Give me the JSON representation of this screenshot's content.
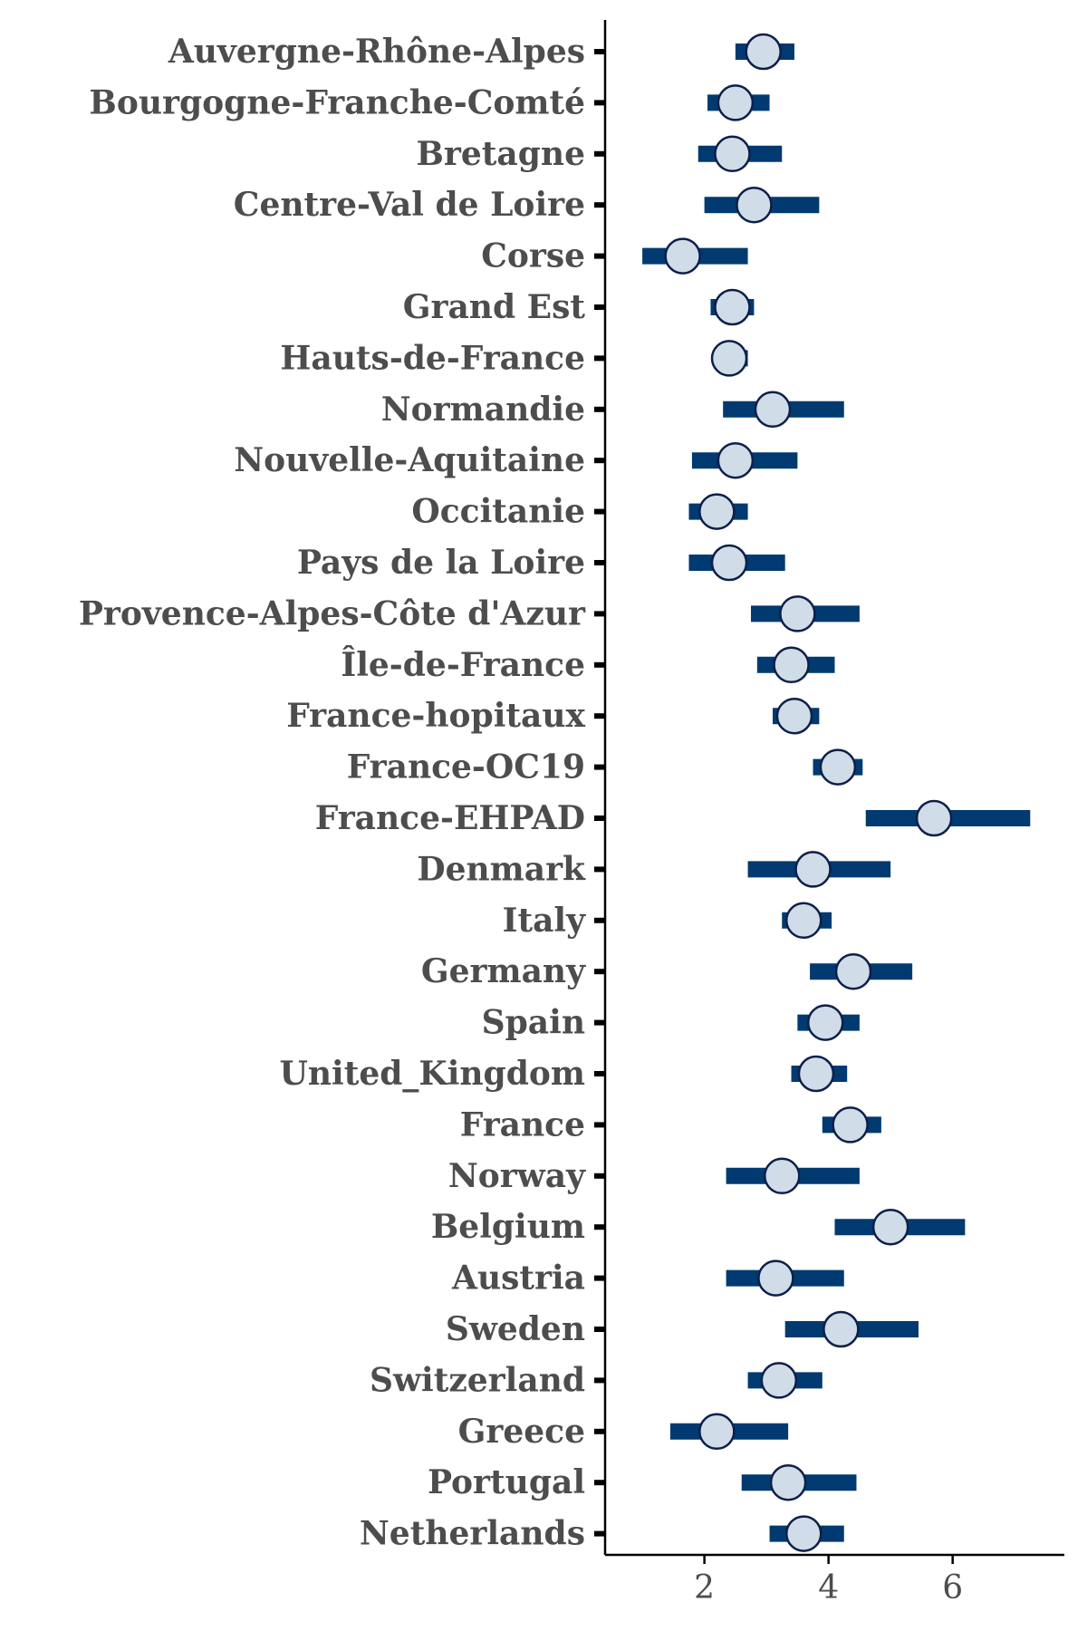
{
  "chart_data": {
    "type": "forest",
    "xlabel": "",
    "ylabel": "",
    "xlim": [
      0.4,
      7.8
    ],
    "xticks": [
      2,
      4,
      6
    ],
    "grid": false,
    "legend": "none",
    "colors": {
      "interval": "#003a70",
      "point_fill": "#d0dde8",
      "point_stroke": "#0d1f4a",
      "axis": "#000000",
      "text": "#4d4d4d"
    },
    "rows": [
      {
        "label": "Auvergne-Rhône-Alpes",
        "estimate": 2.95,
        "low": 2.5,
        "high": 3.45
      },
      {
        "label": "Bourgogne-Franche-Comté",
        "estimate": 2.5,
        "low": 2.05,
        "high": 3.05
      },
      {
        "label": "Bretagne",
        "estimate": 2.45,
        "low": 1.9,
        "high": 3.25
      },
      {
        "label": "Centre-Val de Loire",
        "estimate": 2.8,
        "low": 2.0,
        "high": 3.85
      },
      {
        "label": "Corse",
        "estimate": 1.65,
        "low": 1.0,
        "high": 2.7
      },
      {
        "label": "Grand Est",
        "estimate": 2.45,
        "low": 2.1,
        "high": 2.8
      },
      {
        "label": "Hauts-de-France",
        "estimate": 2.4,
        "low": 2.15,
        "high": 2.7
      },
      {
        "label": "Normandie",
        "estimate": 3.1,
        "low": 2.3,
        "high": 4.25
      },
      {
        "label": "Nouvelle-Aquitaine",
        "estimate": 2.5,
        "low": 1.8,
        "high": 3.5
      },
      {
        "label": "Occitanie",
        "estimate": 2.2,
        "low": 1.75,
        "high": 2.7
      },
      {
        "label": "Pays de la Loire",
        "estimate": 2.4,
        "low": 1.75,
        "high": 3.3
      },
      {
        "label": "Provence-Alpes-Côte d'Azur",
        "estimate": 3.5,
        "low": 2.75,
        "high": 4.5
      },
      {
        "label": "Île-de-France",
        "estimate": 3.4,
        "low": 2.85,
        "high": 4.1
      },
      {
        "label": "France-hopitaux",
        "estimate": 3.45,
        "low": 3.1,
        "high": 3.85
      },
      {
        "label": "France-OC19",
        "estimate": 4.15,
        "low": 3.75,
        "high": 4.55
      },
      {
        "label": "France-EHPAD",
        "estimate": 5.7,
        "low": 4.6,
        "high": 7.25
      },
      {
        "label": "Denmark",
        "estimate": 3.75,
        "low": 2.7,
        "high": 5.0
      },
      {
        "label": "Italy",
        "estimate": 3.6,
        "low": 3.25,
        "high": 4.05
      },
      {
        "label": "Germany",
        "estimate": 4.4,
        "low": 3.7,
        "high": 5.35
      },
      {
        "label": "Spain",
        "estimate": 3.95,
        "low": 3.5,
        "high": 4.5
      },
      {
        "label": "United_Kingdom",
        "estimate": 3.8,
        "low": 3.4,
        "high": 4.3
      },
      {
        "label": "France",
        "estimate": 4.35,
        "low": 3.9,
        "high": 4.85
      },
      {
        "label": "Norway",
        "estimate": 3.25,
        "low": 2.35,
        "high": 4.5
      },
      {
        "label": "Belgium",
        "estimate": 5.0,
        "low": 4.1,
        "high": 6.2
      },
      {
        "label": "Austria",
        "estimate": 3.15,
        "low": 2.35,
        "high": 4.25
      },
      {
        "label": "Sweden",
        "estimate": 4.2,
        "low": 3.3,
        "high": 5.45
      },
      {
        "label": "Switzerland",
        "estimate": 3.2,
        "low": 2.7,
        "high": 3.9
      },
      {
        "label": "Greece",
        "estimate": 2.2,
        "low": 1.45,
        "high": 3.35
      },
      {
        "label": "Portugal",
        "estimate": 3.35,
        "low": 2.6,
        "high": 4.45
      },
      {
        "label": "Netherlands",
        "estimate": 3.6,
        "low": 3.05,
        "high": 4.25
      }
    ]
  }
}
